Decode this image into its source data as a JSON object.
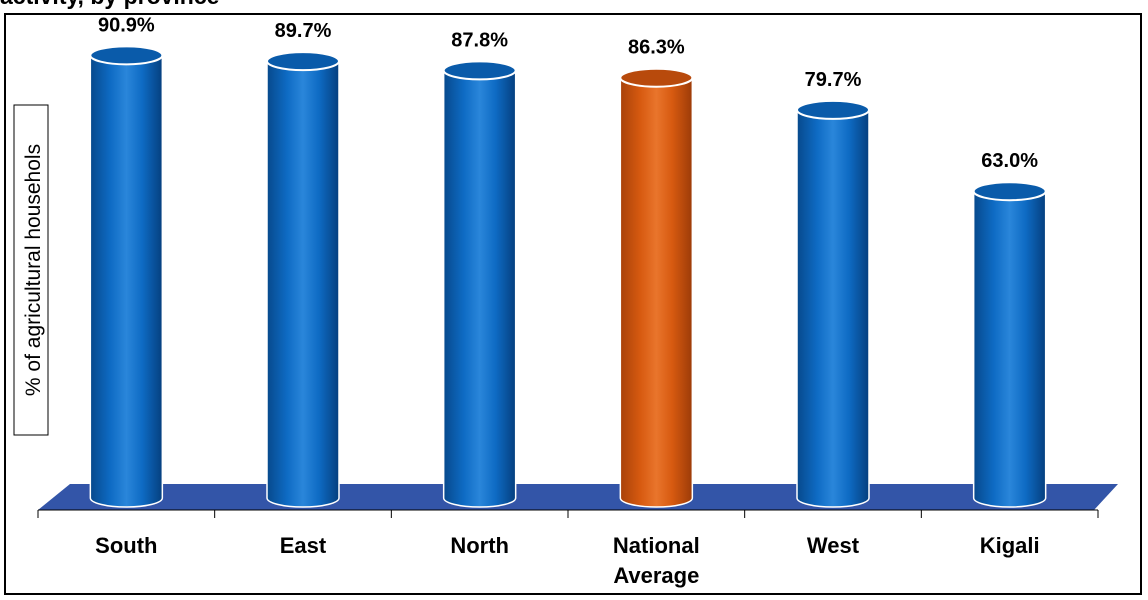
{
  "page": {
    "title_fragment": "activity, by province"
  },
  "colors": {
    "bar": "#0B62B8",
    "bar_highlight": "#D75A10",
    "floor": "#3355A8",
    "text": "#000000"
  },
  "chart_data": {
    "type": "bar",
    "title": "",
    "xlabel": "",
    "ylabel": "% of agricultural househols",
    "categories": [
      "South",
      "East",
      "North",
      "National\nAverage",
      "West",
      "Kigali"
    ],
    "values": [
      90.9,
      89.7,
      87.8,
      86.3,
      79.7,
      63.0
    ],
    "value_labels": [
      "90.9%",
      "89.7%",
      "87.8%",
      "86.3%",
      "79.7%",
      "63.0%"
    ],
    "highlight_index": 3,
    "ylim": [
      0,
      100
    ],
    "grid": false,
    "legend": "none",
    "style": "3d-cylinder"
  }
}
